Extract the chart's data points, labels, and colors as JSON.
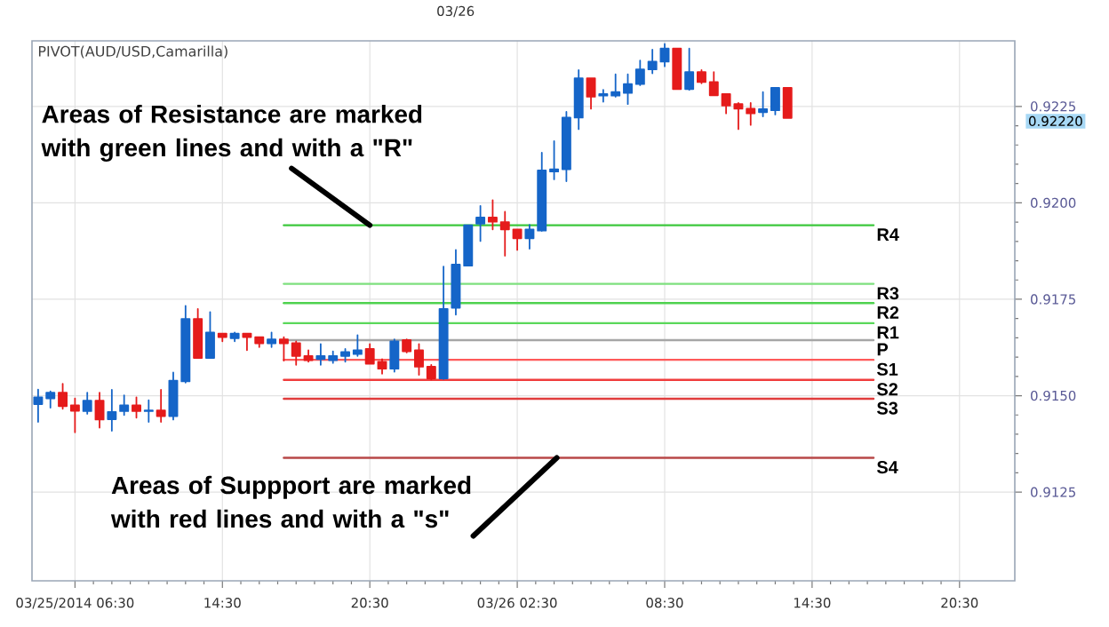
{
  "chart_data": {
    "type": "candlestick",
    "title": "PIVOT(AUD/USD,Camarilla)",
    "categories": [
      null,
      null,
      null,
      "03/25/2014 06:30",
      null,
      null,
      null,
      null,
      null,
      null,
      null,
      null,
      null,
      null,
      null,
      "14:30",
      null,
      null,
      null,
      null,
      null,
      null,
      null,
      null,
      null,
      null,
      null,
      "20:30",
      null,
      null,
      null,
      null,
      null,
      null,
      null,
      null,
      null,
      null,
      null,
      "03/26 02:30",
      null,
      null,
      null,
      null,
      null,
      null,
      null,
      null,
      null,
      null,
      null,
      "08:30",
      null,
      null,
      null,
      null,
      null,
      null,
      null,
      null,
      null,
      null,
      null,
      "14:30",
      null,
      null,
      null,
      null,
      null,
      null,
      null,
      null,
      null,
      null,
      null,
      "20:30",
      null,
      null,
      null,
      null
    ],
    "ohlc": [
      [
        0.91478,
        0.91516,
        0.91432,
        0.91496
      ],
      [
        0.91493,
        0.91511,
        0.91469,
        0.91508
      ],
      [
        0.91508,
        0.91531,
        0.91466,
        0.91473
      ],
      [
        0.91475,
        0.91493,
        0.91405,
        0.91461
      ],
      [
        0.9146,
        0.91508,
        0.91453,
        0.91487
      ],
      [
        0.91487,
        0.91508,
        0.91417,
        0.91438
      ],
      [
        0.91439,
        0.91515,
        0.91409,
        0.91458
      ],
      [
        0.9146,
        0.91501,
        0.9145,
        0.91475
      ],
      [
        0.91475,
        0.91496,
        0.91443,
        0.9146
      ],
      [
        0.9146,
        0.91488,
        0.91432,
        0.91462
      ],
      [
        0.91462,
        0.91515,
        0.91432,
        0.91447
      ],
      [
        0.91447,
        0.9156,
        0.91438,
        0.91539
      ],
      [
        0.91537,
        0.91733,
        0.91534,
        0.91699
      ],
      [
        0.91699,
        0.91725,
        0.91598,
        0.91598
      ],
      [
        0.91598,
        0.91717,
        0.91598,
        0.91664
      ],
      [
        0.91661,
        0.91661,
        0.91641,
        0.91652
      ],
      [
        0.91649,
        0.91664,
        0.91641,
        0.91661
      ],
      [
        0.91661,
        0.91661,
        0.91618,
        0.91652
      ],
      [
        0.91652,
        0.91652,
        0.91626,
        0.91636
      ],
      [
        0.91636,
        0.91664,
        0.91626,
        0.91646
      ],
      [
        0.91646,
        0.91652,
        0.91591,
        0.91636
      ],
      [
        0.91636,
        0.91641,
        0.9158,
        0.91603
      ],
      [
        0.91603,
        0.91618,
        0.91588,
        0.91592
      ],
      [
        0.91595,
        0.91634,
        0.9158,
        0.91603
      ],
      [
        0.91592,
        0.91615,
        0.91585,
        0.91603
      ],
      [
        0.91603,
        0.91621,
        0.91588,
        0.91613
      ],
      [
        0.91608,
        0.91657,
        0.91603,
        0.91618
      ],
      [
        0.91621,
        0.91634,
        0.91583,
        0.91583
      ],
      [
        0.91588,
        0.91595,
        0.91557,
        0.9157
      ],
      [
        0.9157,
        0.91646,
        0.91562,
        0.91641
      ],
      [
        0.91644,
        0.91646,
        0.91612,
        0.91615
      ],
      [
        0.91618,
        0.91634,
        0.91554,
        0.91575
      ],
      [
        0.91575,
        0.9158,
        0.91542,
        0.91545
      ],
      [
        0.91545,
        0.91835,
        0.91543,
        0.91725
      ],
      [
        0.91728,
        0.91878,
        0.9171,
        0.9184
      ],
      [
        0.91837,
        0.91942,
        0.91837,
        0.91942
      ],
      [
        0.91946,
        0.91992,
        0.91901,
        0.91962
      ],
      [
        0.91962,
        0.92007,
        0.91931,
        0.91951
      ],
      [
        0.9195,
        0.91977,
        0.91863,
        0.91931
      ],
      [
        0.91931,
        0.91931,
        0.91878,
        0.91908
      ],
      [
        0.91908,
        0.91943,
        0.91881,
        0.91931
      ],
      [
        0.91928,
        0.9213,
        0.91927,
        0.92084
      ],
      [
        0.92081,
        0.9216,
        0.92061,
        0.92087
      ],
      [
        0.92087,
        0.92236,
        0.92056,
        0.92221
      ],
      [
        0.92221,
        0.92344,
        0.92191,
        0.92323
      ],
      [
        0.92323,
        0.92323,
        0.92244,
        0.92275
      ],
      [
        0.92278,
        0.92293,
        0.92262,
        0.92282
      ],
      [
        0.92278,
        0.92333,
        0.92275,
        0.92287
      ],
      [
        0.92285,
        0.92333,
        0.92256,
        0.92308
      ],
      [
        0.92308,
        0.92369,
        0.92305,
        0.92346
      ],
      [
        0.92346,
        0.92397,
        0.92336,
        0.92366
      ],
      [
        0.92366,
        0.92412,
        0.92354,
        0.924
      ],
      [
        0.924,
        0.924,
        0.92295,
        0.92295
      ],
      [
        0.92295,
        0.924,
        0.92293,
        0.92339
      ],
      [
        0.92339,
        0.92344,
        0.9231,
        0.92313
      ],
      [
        0.92313,
        0.92339,
        0.92279,
        0.92279
      ],
      [
        0.92282,
        0.92282,
        0.92232,
        0.92252
      ],
      [
        0.92256,
        0.92259,
        0.92191,
        0.92244
      ],
      [
        0.92244,
        0.92259,
        0.92202,
        0.92232
      ],
      [
        0.92235,
        0.92287,
        0.92224,
        0.92243
      ],
      [
        0.9224,
        0.92298,
        0.92229,
        0.92298
      ],
      [
        0.92298,
        0.92298,
        0.9222,
        0.9222
      ],
      null,
      null,
      null,
      null,
      null,
      null,
      null,
      null,
      null,
      null,
      null,
      null,
      null,
      null,
      null,
      null,
      null,
      null
    ],
    "colors": [
      "#1565c8",
      "#1565c8",
      "#e51b1b",
      "#e51b1b",
      "#1565c8",
      "#e51b1b",
      "#1565c8",
      "#1565c8",
      "#e51b1b",
      "#1565c8",
      "#e51b1b",
      "#1565c8",
      "#1565c8",
      "#e51b1b",
      "#1565c8",
      "#e51b1b",
      "#1565c8",
      "#e51b1b",
      "#e51b1b",
      "#1565c8",
      "#e51b1b",
      "#e51b1b",
      "#e51b1b",
      "#1565c8",
      "#1565c8",
      "#1565c8",
      "#1565c8",
      "#e51b1b",
      "#e51b1b",
      "#1565c8",
      "#e51b1b",
      "#e51b1b",
      "#e51b1b",
      "#1565c8",
      "#1565c8",
      "#1565c8",
      "#1565c8",
      "#e51b1b",
      "#e51b1b",
      "#e51b1b",
      "#1565c8",
      "#1565c8",
      "#1565c8",
      "#1565c8",
      "#1565c8",
      "#e51b1b",
      "#1565c8",
      "#1565c8",
      "#1565c8",
      "#1565c8",
      "#1565c8",
      "#1565c8",
      "#e51b1b",
      "#1565c8",
      "#e51b1b",
      "#e51b1b",
      "#e51b1b",
      "#e51b1b",
      "#e51b1b",
      "#1565c8",
      "#1565c8",
      "#e51b1b",
      null,
      null,
      null,
      null,
      null,
      null,
      null,
      null,
      null,
      null,
      null,
      null,
      null,
      null,
      null,
      null,
      null,
      null
    ],
    "series": [
      {
        "name": "R4",
        "type": "line",
        "color": "#3cc83c",
        "values": [
          null,
          null,
          null,
          null,
          null,
          null,
          null,
          null,
          null,
          null,
          null,
          null,
          null,
          null,
          null,
          null,
          null,
          null,
          null,
          null,
          0.91942,
          0.91942,
          0.91942,
          0.91942,
          0.91942,
          0.91942,
          0.91942,
          0.91942,
          0.91942,
          0.91942,
          0.91942,
          0.91942,
          0.91942,
          0.91942,
          0.91942,
          0.91942,
          0.91942,
          0.91942,
          0.91942,
          0.91942,
          0.91942,
          0.91942,
          0.91942,
          0.91942,
          0.91942,
          0.91942,
          0.91942,
          0.91942,
          0.91942,
          0.91942,
          0.91942,
          0.91942,
          0.91942,
          0.91942,
          0.91942,
          0.91942,
          0.91942,
          0.91942,
          0.91942,
          0.91942,
          0.91942,
          0.91942,
          0.91942,
          0.91942,
          0.91942,
          0.91942,
          0.91942,
          0.91942,
          0.91942,
          null,
          null,
          null,
          null,
          null,
          null,
          null,
          null,
          null,
          null,
          null
        ]
      },
      {
        "name": "R3",
        "type": "line",
        "color": "#7ee07e",
        "values": [
          null,
          null,
          null,
          null,
          null,
          null,
          null,
          null,
          null,
          null,
          null,
          null,
          null,
          null,
          null,
          null,
          null,
          null,
          null,
          null,
          0.9179,
          0.9179,
          0.9179,
          0.9179,
          0.9179,
          0.9179,
          0.9179,
          0.9179,
          0.9179,
          0.9179,
          0.9179,
          0.9179,
          0.9179,
          0.9179,
          0.9179,
          0.9179,
          0.9179,
          0.9179,
          0.9179,
          0.9179,
          0.9179,
          0.9179,
          0.9179,
          0.9179,
          0.9179,
          0.9179,
          0.9179,
          0.9179,
          0.9179,
          0.9179,
          0.9179,
          0.9179,
          0.9179,
          0.9179,
          0.9179,
          0.9179,
          0.9179,
          0.9179,
          0.9179,
          0.9179,
          0.9179,
          0.9179,
          0.9179,
          0.9179,
          0.9179,
          0.9179,
          0.9179,
          0.9179,
          0.9179,
          null,
          null,
          null,
          null,
          null,
          null,
          null,
          null,
          null,
          null,
          null
        ]
      },
      {
        "name": "R2",
        "type": "line",
        "color": "#4fd24f",
        "values": [
          null,
          null,
          null,
          null,
          null,
          null,
          null,
          null,
          null,
          null,
          null,
          null,
          null,
          null,
          null,
          null,
          null,
          null,
          null,
          null,
          0.9174,
          0.9174,
          0.9174,
          0.9174,
          0.9174,
          0.9174,
          0.9174,
          0.9174,
          0.9174,
          0.9174,
          0.9174,
          0.9174,
          0.9174,
          0.9174,
          0.9174,
          0.9174,
          0.9174,
          0.9174,
          0.9174,
          0.9174,
          0.9174,
          0.9174,
          0.9174,
          0.9174,
          0.9174,
          0.9174,
          0.9174,
          0.9174,
          0.9174,
          0.9174,
          0.9174,
          0.9174,
          0.9174,
          0.9174,
          0.9174,
          0.9174,
          0.9174,
          0.9174,
          0.9174,
          0.9174,
          0.9174,
          0.9174,
          0.9174,
          0.9174,
          0.9174,
          0.9174,
          0.9174,
          0.9174,
          0.9174,
          null,
          null,
          null,
          null,
          null,
          null,
          null,
          null,
          null,
          null,
          null
        ]
      },
      {
        "name": "R1",
        "type": "line",
        "color": "#5ad85a",
        "values": [
          null,
          null,
          null,
          null,
          null,
          null,
          null,
          null,
          null,
          null,
          null,
          null,
          null,
          null,
          null,
          null,
          null,
          null,
          null,
          null,
          0.91688,
          0.91688,
          0.91688,
          0.91688,
          0.91688,
          0.91688,
          0.91688,
          0.91688,
          0.91688,
          0.91688,
          0.91688,
          0.91688,
          0.91688,
          0.91688,
          0.91688,
          0.91688,
          0.91688,
          0.91688,
          0.91688,
          0.91688,
          0.91688,
          0.91688,
          0.91688,
          0.91688,
          0.91688,
          0.91688,
          0.91688,
          0.91688,
          0.91688,
          0.91688,
          0.91688,
          0.91688,
          0.91688,
          0.91688,
          0.91688,
          0.91688,
          0.91688,
          0.91688,
          0.91688,
          0.91688,
          0.91688,
          0.91688,
          0.91688,
          0.91688,
          0.91688,
          0.91688,
          0.91688,
          0.91688,
          0.91688,
          null,
          null,
          null,
          null,
          null,
          null,
          null,
          null,
          null,
          null,
          null
        ]
      },
      {
        "name": "P",
        "type": "line",
        "color": "#a6a6a6",
        "values": [
          null,
          null,
          null,
          null,
          null,
          null,
          null,
          null,
          null,
          null,
          null,
          null,
          null,
          null,
          null,
          null,
          null,
          null,
          null,
          null,
          0.91644,
          0.91644,
          0.91644,
          0.91644,
          0.91644,
          0.91644,
          0.91644,
          0.91644,
          0.91644,
          0.91644,
          0.91644,
          0.91644,
          0.91644,
          0.91644,
          0.91644,
          0.91644,
          0.91644,
          0.91644,
          0.91644,
          0.91644,
          0.91644,
          0.91644,
          0.91644,
          0.91644,
          0.91644,
          0.91644,
          0.91644,
          0.91644,
          0.91644,
          0.91644,
          0.91644,
          0.91644,
          0.91644,
          0.91644,
          0.91644,
          0.91644,
          0.91644,
          0.91644,
          0.91644,
          0.91644,
          0.91644,
          0.91644,
          0.91644,
          0.91644,
          0.91644,
          0.91644,
          0.91644,
          0.91644,
          0.91644,
          null,
          null,
          null,
          null,
          null,
          null,
          null,
          null,
          null,
          null,
          null
        ]
      },
      {
        "name": "S1",
        "type": "line",
        "color": "#ff5a5a",
        "values": [
          null,
          null,
          null,
          null,
          null,
          null,
          null,
          null,
          null,
          null,
          null,
          null,
          null,
          null,
          null,
          null,
          null,
          null,
          null,
          null,
          0.91593,
          0.91593,
          0.91593,
          0.91593,
          0.91593,
          0.91593,
          0.91593,
          0.91593,
          0.91593,
          0.91593,
          0.91593,
          0.91593,
          0.91593,
          0.91593,
          0.91593,
          0.91593,
          0.91593,
          0.91593,
          0.91593,
          0.91593,
          0.91593,
          0.91593,
          0.91593,
          0.91593,
          0.91593,
          0.91593,
          0.91593,
          0.91593,
          0.91593,
          0.91593,
          0.91593,
          0.91593,
          0.91593,
          0.91593,
          0.91593,
          0.91593,
          0.91593,
          0.91593,
          0.91593,
          0.91593,
          0.91593,
          0.91593,
          0.91593,
          0.91593,
          0.91593,
          0.91593,
          0.91593,
          0.91593,
          0.91593,
          null,
          null,
          null,
          null,
          null,
          null,
          null,
          null,
          null,
          null,
          null
        ]
      },
      {
        "name": "S2",
        "type": "line",
        "color": "#f03c3c",
        "values": [
          null,
          null,
          null,
          null,
          null,
          null,
          null,
          null,
          null,
          null,
          null,
          null,
          null,
          null,
          null,
          null,
          null,
          null,
          null,
          null,
          0.91541,
          0.91541,
          0.91541,
          0.91541,
          0.91541,
          0.91541,
          0.91541,
          0.91541,
          0.91541,
          0.91541,
          0.91541,
          0.91541,
          0.91541,
          0.91541,
          0.91541,
          0.91541,
          0.91541,
          0.91541,
          0.91541,
          0.91541,
          0.91541,
          0.91541,
          0.91541,
          0.91541,
          0.91541,
          0.91541,
          0.91541,
          0.91541,
          0.91541,
          0.91541,
          0.91541,
          0.91541,
          0.91541,
          0.91541,
          0.91541,
          0.91541,
          0.91541,
          0.91541,
          0.91541,
          0.91541,
          0.91541,
          0.91541,
          0.91541,
          0.91541,
          0.91541,
          0.91541,
          0.91541,
          0.91541,
          0.91541,
          null,
          null,
          null,
          null,
          null,
          null,
          null,
          null,
          null,
          null,
          null
        ]
      },
      {
        "name": "S3",
        "type": "line",
        "color": "#e03c3c",
        "values": [
          null,
          null,
          null,
          null,
          null,
          null,
          null,
          null,
          null,
          null,
          null,
          null,
          null,
          null,
          null,
          null,
          null,
          null,
          null,
          null,
          0.91492,
          0.91492,
          0.91492,
          0.91492,
          0.91492,
          0.91492,
          0.91492,
          0.91492,
          0.91492,
          0.91492,
          0.91492,
          0.91492,
          0.91492,
          0.91492,
          0.91492,
          0.91492,
          0.91492,
          0.91492,
          0.91492,
          0.91492,
          0.91492,
          0.91492,
          0.91492,
          0.91492,
          0.91492,
          0.91492,
          0.91492,
          0.91492,
          0.91492,
          0.91492,
          0.91492,
          0.91492,
          0.91492,
          0.91492,
          0.91492,
          0.91492,
          0.91492,
          0.91492,
          0.91492,
          0.91492,
          0.91492,
          0.91492,
          0.91492,
          0.91492,
          0.91492,
          0.91492,
          0.91492,
          0.91492,
          0.91492,
          null,
          null,
          null,
          null,
          null,
          null,
          null,
          null,
          null,
          null,
          null
        ]
      },
      {
        "name": "S4",
        "type": "line",
        "color": "#b84848",
        "values": [
          null,
          null,
          null,
          null,
          null,
          null,
          null,
          null,
          null,
          null,
          null,
          null,
          null,
          null,
          null,
          null,
          null,
          null,
          null,
          null,
          0.91339,
          0.91339,
          0.91339,
          0.91339,
          0.91339,
          0.91339,
          0.91339,
          0.91339,
          0.91339,
          0.91339,
          0.91339,
          0.91339,
          0.91339,
          0.91339,
          0.91339,
          0.91339,
          0.91339,
          0.91339,
          0.91339,
          0.91339,
          0.91339,
          0.91339,
          0.91339,
          0.91339,
          0.91339,
          0.91339,
          0.91339,
          0.91339,
          0.91339,
          0.91339,
          0.91339,
          0.91339,
          0.91339,
          0.91339,
          0.91339,
          0.91339,
          0.91339,
          0.91339,
          0.91339,
          0.91339,
          0.91339,
          0.91339,
          0.91339,
          0.91339,
          0.91339,
          0.91339,
          0.91339,
          0.91339,
          0.91339,
          null,
          null,
          null,
          null,
          null,
          null,
          null,
          null,
          null,
          null,
          null
        ]
      }
    ],
    "ylim": [
      0.9102,
      0.9242
    ],
    "yticks": [
      0.9125,
      {
        "value": 0.915,
        "label": "0.9150"
      },
      0.9175,
      {
        "value": 0.92,
        "label": "0.9200"
      },
      0.9225
    ],
    "grid": true,
    "annotations": [
      {
        "text": "Areas of Resistance are marked with green lines and with a \"R\"",
        "x": "20:30",
        "y": 0.91942
      },
      {
        "text": "Areas of Suppport are marked with red lines and with a \"s\"",
        "y": 0.91339
      },
      "0.92220",
      "03/26"
    ]
  }
}
